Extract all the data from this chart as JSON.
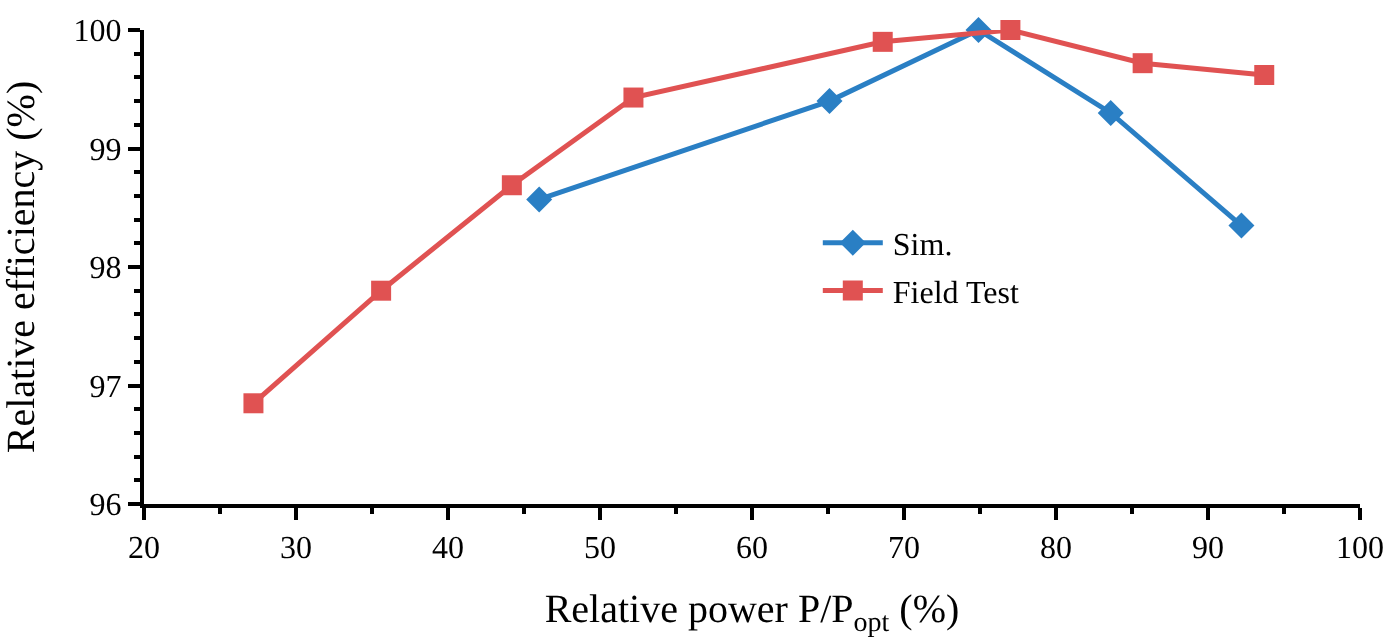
{
  "chart_data": {
    "type": "line",
    "xlabel": "Relative power P/P$_{opt}$ (%)",
    "ylabel": "Relative efficiency (%)",
    "xlim": [
      20,
      100
    ],
    "xticks": [
      20,
      30,
      40,
      50,
      60,
      70,
      80,
      90,
      100
    ],
    "ylim": [
      96,
      100
    ],
    "yticks": [
      96,
      97,
      98,
      99,
      100
    ],
    "legend": "right",
    "series": [
      {
        "name": "Sim.",
        "color": "#2a7fc4",
        "marker": "diamond",
        "x": [
          46.0,
          65.1,
          74.9,
          83.6,
          92.2
        ],
        "values": [
          98.57,
          99.4,
          100.0,
          99.3,
          98.35
        ]
      },
      {
        "name": "Field Test",
        "color": "#e05252",
        "marker": "square",
        "x": [
          27.2,
          35.6,
          44.2,
          52.2,
          68.6,
          77.0,
          85.7,
          93.7
        ],
        "values": [
          96.85,
          97.8,
          98.69,
          99.43,
          99.9,
          100.0,
          99.72,
          99.62
        ]
      }
    ]
  }
}
